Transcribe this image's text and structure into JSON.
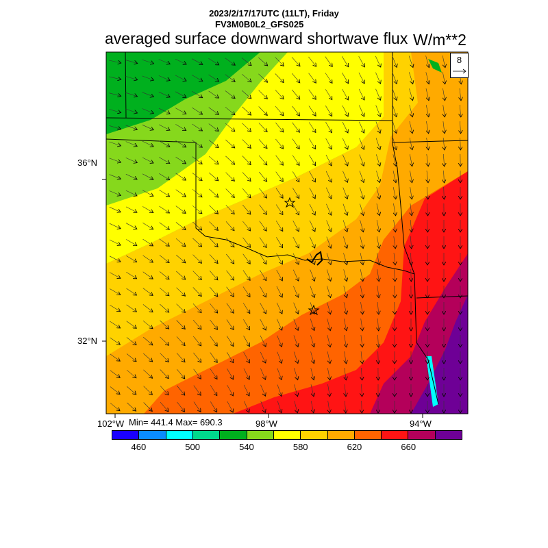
{
  "header": {
    "datetime": "2023/2/17/17UTC (11LT), Friday",
    "model": "FV3M0B0L2_GFS025",
    "field_title": "averaged surface downward shortwave flux",
    "units": "W/m**2",
    "minmax": "Min= 441.4 Max= 690.3"
  },
  "map": {
    "lat_labels": [
      "36°N",
      "32°N"
    ],
    "lon_labels": [
      "102°W",
      "98°W",
      "94°W"
    ],
    "wind_reference": "8",
    "cities": [
      "star-marker",
      "star-marker"
    ]
  },
  "colorbar": {
    "colors": [
      "#1a00ff",
      "#0a8cff",
      "#00ffff",
      "#00d98c",
      "#00b01e",
      "#86d81c",
      "#ffff00",
      "#ffd200",
      "#ffaa00",
      "#ff6400",
      "#ff1414",
      "#b4005a",
      "#6e0096"
    ],
    "labels": [
      "460",
      "500",
      "540",
      "580",
      "620",
      "660"
    ]
  },
  "colors": {
    "fill_green": "#00b01e",
    "fill_lightgreen": "#86d81c",
    "fill_yellow": "#ffff00",
    "fill_gold": "#ffd200",
    "fill_orange": "#ffaa00",
    "fill_darkorange": "#ff6400",
    "fill_red": "#ff1414",
    "fill_maroon": "#b4005a",
    "fill_purple": "#6e0096"
  }
}
